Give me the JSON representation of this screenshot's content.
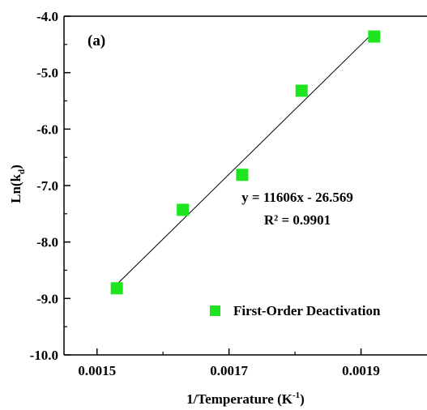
{
  "chart_data": {
    "type": "scatter",
    "panel_label": "(a)",
    "xlabel_main": "1/Temperature (K",
    "xlabel_sup": "-1",
    "xlabel_tail": ")",
    "ylabel_main": "Ln(k",
    "ylabel_sub": "d",
    "ylabel_tail": ")",
    "xlim": [
      0.00145,
      0.002
    ],
    "ylim": [
      -10.0,
      -4.0
    ],
    "x_ticks": [
      0.0015,
      0.0017,
      0.0019
    ],
    "x_tick_labels": [
      "0.0015",
      "0.0017",
      "0.0019"
    ],
    "y_ticks": [
      -4.0,
      -5.0,
      -6.0,
      -7.0,
      -8.0,
      -9.0,
      -10.0
    ],
    "y_tick_labels": [
      "-4.0",
      "-5.0",
      "-6.0",
      "-7.0",
      "-8.0",
      "-9.0",
      "-10.0"
    ],
    "grid": false,
    "legend_position": "bottom-right",
    "series": [
      {
        "name": "First-Order Deactivation",
        "color": "#1ee61e",
        "marker": "square",
        "x": [
          0.00153,
          0.00163,
          0.00172,
          0.00181,
          0.00192
        ],
        "y": [
          -8.82,
          -7.43,
          -6.81,
          -5.32,
          -4.36
        ]
      }
    ],
    "trendline": {
      "slope": 11606,
      "intercept": -26.569,
      "x_range": [
        0.00153,
        0.00192
      ],
      "equation": "y = 11606x - 26.569",
      "r_squared": "R² = 0.9901"
    }
  }
}
